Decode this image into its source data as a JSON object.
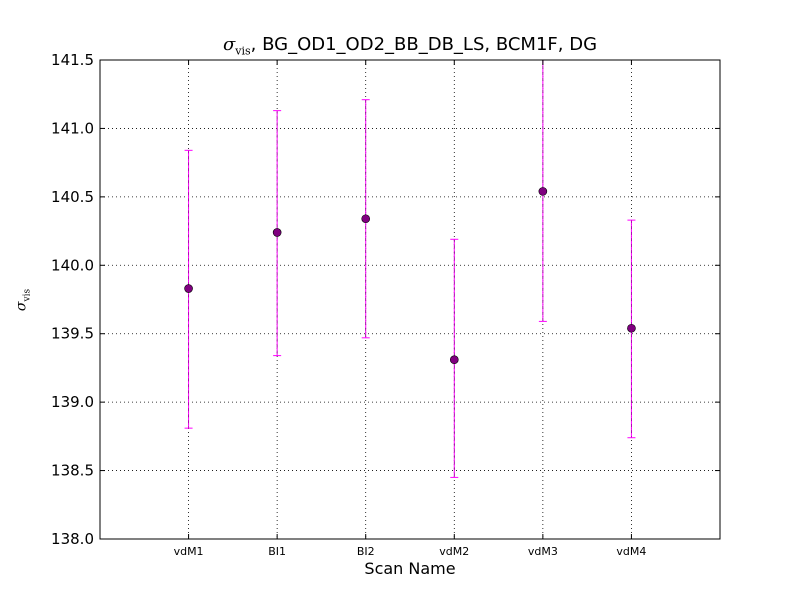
{
  "chart_data": {
    "type": "scatter",
    "title_symbol": "σ",
    "title_subscript": "vis",
    "title_rest": ", BG_OD1_OD2_BB_DB_LS, BCM1F, DG",
    "xlabel": "Scan Name",
    "ylabel_symbol": "σ",
    "ylabel_subscript": "vis",
    "categories": [
      "vdM1",
      "BI1",
      "BI2",
      "vdM2",
      "vdM3",
      "vdM4"
    ],
    "series": [
      {
        "values": [
          139.83,
          140.24,
          140.34,
          139.31,
          140.54,
          139.54
        ],
        "err_low": [
          138.81,
          139.34,
          139.47,
          138.45,
          139.59,
          138.74
        ],
        "err_high": [
          140.84,
          141.13,
          141.21,
          140.19,
          141.5,
          140.33
        ],
        "color": "#800080",
        "err_color": "#ff00ff"
      }
    ],
    "ylim": [
      138.0,
      141.5
    ],
    "yticks": [
      "138.0",
      "138.5",
      "139.0",
      "139.5",
      "140.0",
      "140.5",
      "141.0",
      "141.5"
    ],
    "grid": true
  }
}
